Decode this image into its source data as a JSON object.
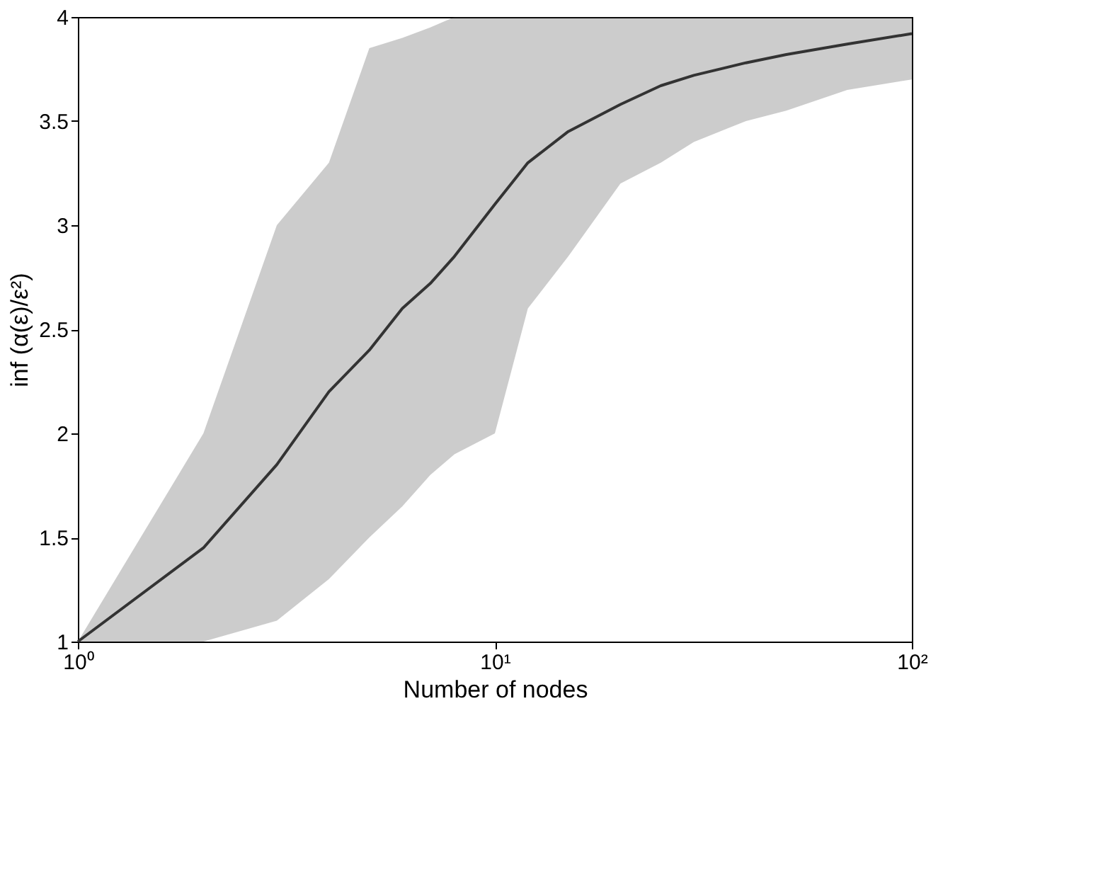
{
  "chart_data": {
    "type": "line",
    "xlabel": "Number of nodes",
    "ylabel": "inf (α(ε)/ε²)",
    "log": "x",
    "xlim": [
      1,
      100
    ],
    "xticks": [
      {
        "value": 1,
        "label": "10⁰"
      },
      {
        "value": 10,
        "label": "10¹"
      },
      {
        "value": 100,
        "label": "10²"
      }
    ],
    "ylim": [
      1,
      4
    ],
    "yticks": [
      1,
      1.5,
      2,
      2.5,
      3,
      3.5,
      4
    ],
    "grid": false,
    "marker": "none",
    "line_style": "solid",
    "x": [
      1,
      2,
      3,
      4,
      5,
      6,
      7,
      8,
      10,
      12,
      15,
      20,
      25,
      30,
      40,
      50,
      70,
      100
    ],
    "series": [
      {
        "color": "#333333",
        "values": [
          1,
          1.45,
          1.85,
          2.2,
          2.4,
          2.6,
          2.72,
          2.85,
          3.1,
          3.3,
          3.45,
          3.58,
          3.67,
          3.72,
          3.78,
          3.82,
          3.87,
          3.92
        ],
        "lower": [
          1,
          1.0,
          1.1,
          1.3,
          1.5,
          1.65,
          1.8,
          1.9,
          2.0,
          2.6,
          2.85,
          3.2,
          3.3,
          3.4,
          3.5,
          3.55,
          3.65,
          3.7
        ],
        "upper": [
          1,
          2.0,
          3.0,
          3.3,
          3.85,
          3.9,
          3.95,
          4,
          4,
          4,
          4,
          4,
          4,
          4,
          4,
          4,
          4,
          4
        ]
      }
    ]
  }
}
